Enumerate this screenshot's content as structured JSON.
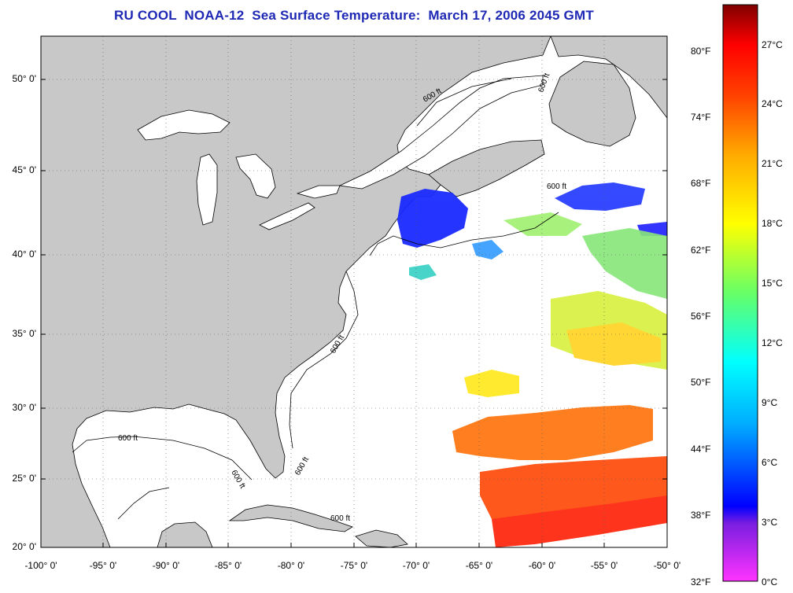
{
  "title": "RU COOL  NOAA-12  Sea Surface Temperature:  March 17, 2006 2045 GMT",
  "map": {
    "lat_labels": [
      "50° 0'",
      "45° 0'",
      "40° 0'",
      "35° 0'",
      "30° 0'",
      "25° 0'",
      "20° 0'"
    ],
    "lon_labels": [
      "-100° 0'",
      "-95° 0'",
      "-90° 0'",
      "-85° 0'",
      "-80° 0'",
      "-75° 0'",
      "-70° 0'",
      "-65° 0'",
      "-60° 0'",
      "-55° 0'",
      "-50° 0'"
    ],
    "contour_labels": [
      "600 ft",
      "600 ft",
      "600 ft",
      "600 ft",
      "600 ft",
      "600 ft",
      "600 ft",
      "600 ft"
    ],
    "land_color": "#c8c8c8",
    "lon_range": [
      -100,
      -50
    ],
    "lat_range": [
      20,
      52
    ]
  },
  "colorbar": {
    "fahrenheit_labels": [
      "80°F",
      "74°F",
      "68°F",
      "62°F",
      "56°F",
      "50°F",
      "44°F",
      "38°F",
      "32°F"
    ],
    "celsius_labels": [
      "27°C",
      "24°C",
      "21°C",
      "18°C",
      "15°C",
      "12°C",
      "9°C",
      "6°C",
      "3°C",
      "0°C"
    ],
    "colors": [
      "#ff33ff",
      "#7a1ee0",
      "#0000ff",
      "#00aaff",
      "#00ffff",
      "#66ff66",
      "#ffff00",
      "#ffaa00",
      "#ff4400",
      "#ff0000",
      "#800000"
    ]
  }
}
